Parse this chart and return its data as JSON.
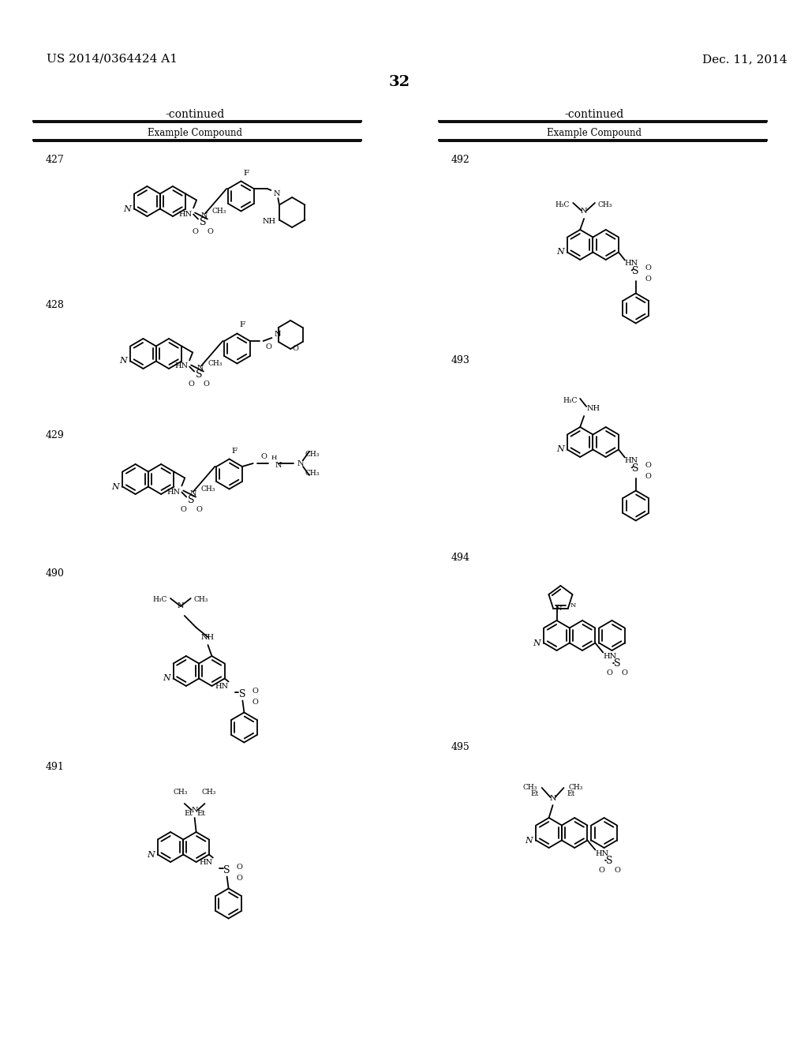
{
  "patent_number": "US 2014/0364424 A1",
  "date": "Dec. 11, 2014",
  "page_number": "32",
  "background_color": "#ffffff",
  "text_color": "#000000",
  "line_color": "#000000"
}
